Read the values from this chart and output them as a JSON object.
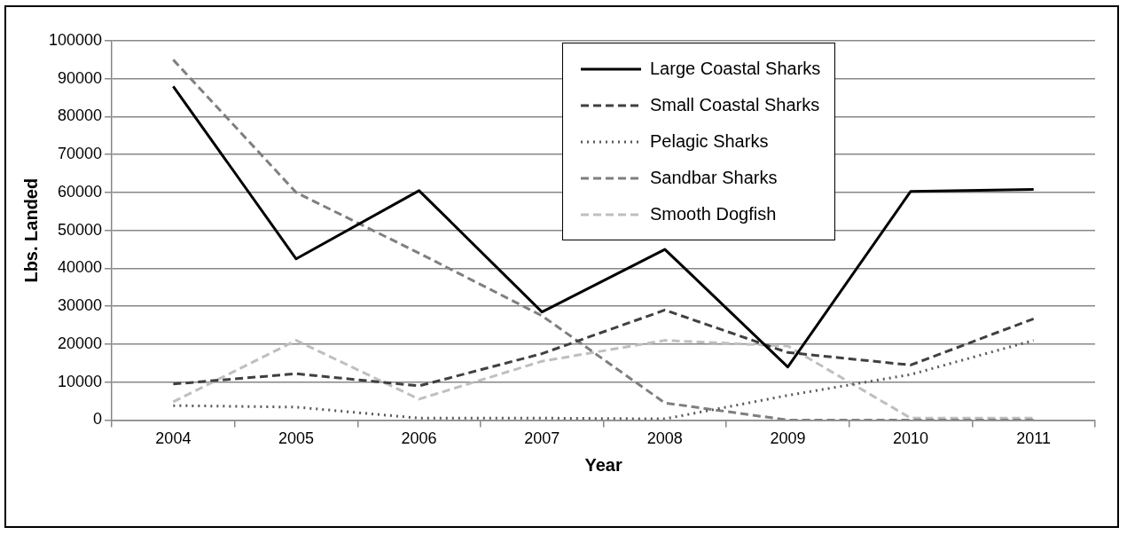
{
  "chart_data": {
    "type": "line",
    "xlabel": "Year",
    "ylabel": "Lbs. Landed",
    "categories": [
      "2004",
      "2005",
      "2006",
      "2007",
      "2008",
      "2009",
      "2010",
      "2011"
    ],
    "series": [
      {
        "name": "Large Coastal Sharks",
        "color": "#000000",
        "line_style": "solid",
        "values": [
          88000,
          42500,
          60500,
          28500,
          45000,
          14000,
          60300,
          60800
        ]
      },
      {
        "name": "Small Coastal Sharks",
        "color": "#404040",
        "line_style": "dashed",
        "values": [
          9500,
          12200,
          9000,
          17500,
          29000,
          17800,
          14500,
          26700
        ]
      },
      {
        "name": "Pelagic Sharks",
        "color": "#595959",
        "line_style": "dotted",
        "values": [
          3800,
          3400,
          500,
          500,
          300,
          6500,
          12000,
          21000
        ]
      },
      {
        "name": "Sandbar Sharks",
        "color": "#7f7f7f",
        "line_style": "dashed",
        "values": [
          95000,
          60000,
          44000,
          27500,
          4500,
          0,
          0,
          0
        ]
      },
      {
        "name": "Smooth Dogfish",
        "color": "#bfbfbf",
        "line_style": "dashed",
        "values": [
          4800,
          21000,
          5500,
          15500,
          21000,
          19500,
          500,
          500
        ]
      }
    ],
    "ylim": [
      0,
      100000
    ],
    "yticks": [
      0,
      10000,
      20000,
      30000,
      40000,
      50000,
      60000,
      70000,
      80000,
      90000,
      100000
    ],
    "grid": "y",
    "legend": "top",
    "marker": "none"
  }
}
